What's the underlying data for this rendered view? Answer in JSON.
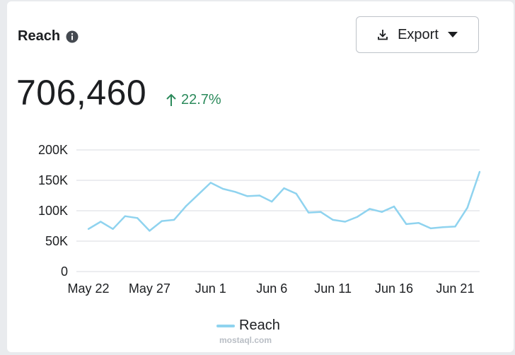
{
  "header": {
    "title": "Reach",
    "export_label": "Export"
  },
  "metric": {
    "value": "706,460",
    "change": "22.7%"
  },
  "colors": {
    "line": "#8fd3ef",
    "grid": "#d8dbe0",
    "positive": "#2b8a5b"
  },
  "icons": {
    "info": "info-icon",
    "download": "download-icon",
    "caret": "caret-down-icon",
    "up": "arrow-up-icon"
  },
  "chart_data": {
    "type": "line",
    "x": [
      "May 22",
      "May 23",
      "May 24",
      "May 25",
      "May 26",
      "May 27",
      "May 28",
      "May 29",
      "May 30",
      "May 31",
      "Jun 1",
      "Jun 2",
      "Jun 3",
      "Jun 4",
      "Jun 5",
      "Jun 6",
      "Jun 7",
      "Jun 8",
      "Jun 9",
      "Jun 10",
      "Jun 11",
      "Jun 12",
      "Jun 13",
      "Jun 14",
      "Jun 15",
      "Jun 16",
      "Jun 17",
      "Jun 18",
      "Jun 19",
      "Jun 20",
      "Jun 21",
      "Jun 22",
      "Jun 23"
    ],
    "series": [
      {
        "name": "Reach",
        "values": [
          70000,
          82000,
          70000,
          91000,
          88000,
          67000,
          83000,
          85000,
          108000,
          127000,
          146000,
          136000,
          131000,
          124000,
          125000,
          115000,
          137000,
          128000,
          97000,
          98000,
          85000,
          82000,
          90000,
          103000,
          98000,
          107000,
          78000,
          80000,
          71000,
          73000,
          74000,
          105000,
          164000
        ]
      }
    ],
    "yticks": [
      "0",
      "50K",
      "100K",
      "150K",
      "200K"
    ],
    "ytick_values": [
      0,
      50000,
      100000,
      150000,
      200000
    ],
    "xticks": [
      "May 22",
      "May 27",
      "Jun 1",
      "Jun 6",
      "Jun 11",
      "Jun 16",
      "Jun 21"
    ],
    "ylim": [
      0,
      200000
    ],
    "grid": true,
    "legend": "bottom-center"
  },
  "watermark": "mostaql.com"
}
